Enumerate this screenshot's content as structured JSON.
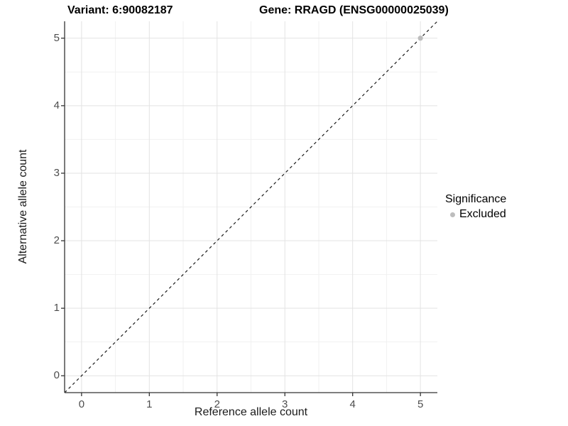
{
  "titles": {
    "variant": "Variant: 6:90082187",
    "gene": "Gene: RRAGD (ENSG00000025039)"
  },
  "axes": {
    "x_label": "Reference allele count",
    "y_label": "Alternative allele count"
  },
  "legend": {
    "title": "Significance",
    "entries": [
      {
        "label": "Excluded",
        "color": "#bdbdbd"
      }
    ]
  },
  "chart_data": {
    "type": "scatter",
    "title_left": "Variant: 6:90082187",
    "title_right": "Gene: RRAGD (ENSG00000025039)",
    "xlabel": "Reference allele count",
    "ylabel": "Alternative allele count",
    "xlim": [
      -0.25,
      5.25
    ],
    "ylim": [
      -0.25,
      5.25
    ],
    "x_ticks": [
      0,
      1,
      2,
      3,
      4,
      5
    ],
    "y_ticks": [
      0,
      1,
      2,
      3,
      4,
      5
    ],
    "minor_x": [
      0.5,
      1.5,
      2.5,
      3.5,
      4.5
    ],
    "minor_y": [
      0.5,
      1.5,
      2.5,
      3.5,
      4.5
    ],
    "grid": true,
    "legend_position": "right",
    "reference_line": {
      "type": "identity",
      "slope": 1,
      "intercept": 0,
      "style": "dashed",
      "color": "#1a1a1a"
    },
    "series": [
      {
        "name": "Excluded",
        "color": "#bdbdbd",
        "points": [
          {
            "x": 5,
            "y": 5
          }
        ]
      }
    ]
  },
  "colors": {
    "background": "#ffffff",
    "grid_major": "#e3e3e3",
    "grid_minor": "#f1f1f1",
    "axis_line": "#333333",
    "tick_text": "#4d4d4d",
    "point_excluded": "#bdbdbd",
    "identity_line": "#1a1a1a"
  }
}
